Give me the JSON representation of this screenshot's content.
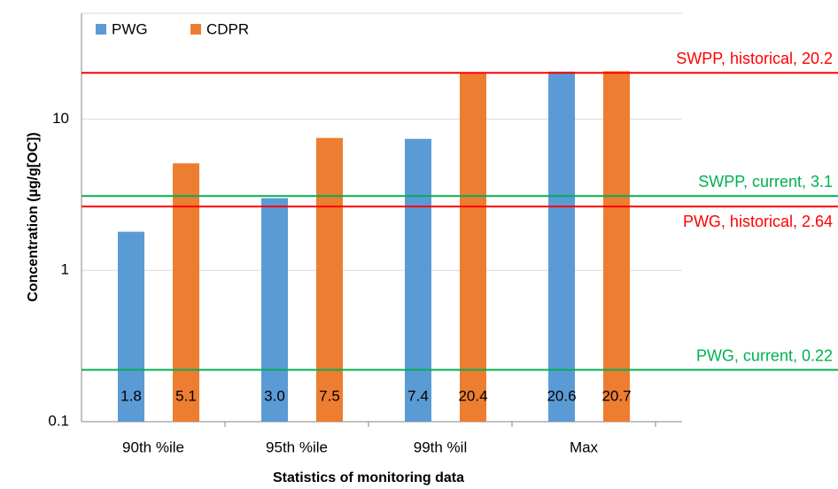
{
  "chart_data": {
    "type": "bar",
    "x_label": "Statistics of monitoring data",
    "y_label": "Concentration (µg/g[OC])",
    "categories": [
      "90th %ile",
      "95th %ile",
      "99th %il",
      "Max"
    ],
    "series": [
      {
        "name": "PWG",
        "color": "#5b9bd5",
        "values": [
          1.8,
          3.0,
          7.4,
          20.6
        ],
        "value_labels": [
          "1.8",
          "3.0",
          "7.4",
          "20.6"
        ]
      },
      {
        "name": "CDPR",
        "color": "#ed7d31",
        "values": [
          5.1,
          7.5,
          20.4,
          20.7
        ],
        "value_labels": [
          "5.1",
          "7.5",
          "20.4",
          "20.7"
        ]
      }
    ],
    "ylim": [
      0.1,
      50
    ],
    "yticks": [
      0.1,
      1,
      10
    ],
    "log_scale": true,
    "grid": true,
    "legend": "top-left",
    "reference_lines": [
      {
        "label": "SWPP, historical, 20.2",
        "value": 20.2,
        "color": "#ff0000"
      },
      {
        "label": "SWPP, current, 3.1",
        "value": 3.1,
        "color": "#00b050"
      },
      {
        "label": "PWG, historical, 2.64",
        "value": 2.64,
        "color": "#ff0000"
      },
      {
        "label": "PWG, current, 0.22",
        "value": 0.22,
        "color": "#00b050"
      }
    ]
  }
}
